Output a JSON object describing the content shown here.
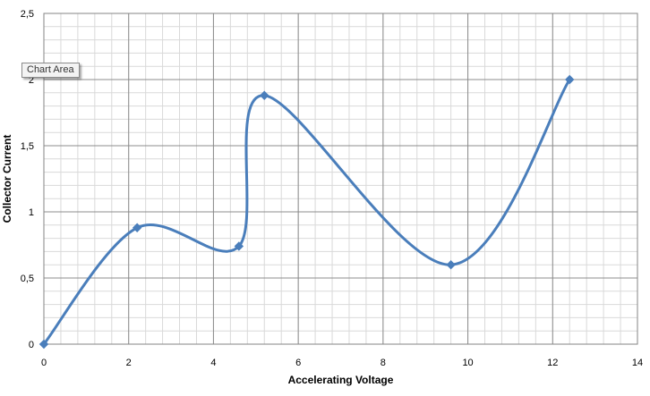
{
  "tooltip": {
    "text": "Chart Area"
  },
  "chart_data": {
    "type": "line",
    "smoothed": true,
    "xlabel": "Accelerating Voltage",
    "ylabel": "Collector Current",
    "xlim": [
      0,
      14
    ],
    "ylim": [
      0,
      2.5
    ],
    "x_ticks": [
      "0",
      "2",
      "4",
      "6",
      "8",
      "10",
      "12",
      "14"
    ],
    "y_ticks": [
      "0",
      "0,5",
      "1",
      "1,5",
      "2",
      "2,5"
    ],
    "grid": true,
    "minor_grid": true,
    "legend": "none",
    "series": [
      {
        "color": "#4a7ebb",
        "marker": "diamond",
        "x": [
          0,
          2.2,
          4.6,
          5.2,
          9.6,
          12.4
        ],
        "y": [
          0,
          0.88,
          0.74,
          1.88,
          0.6,
          2.0
        ]
      }
    ]
  }
}
